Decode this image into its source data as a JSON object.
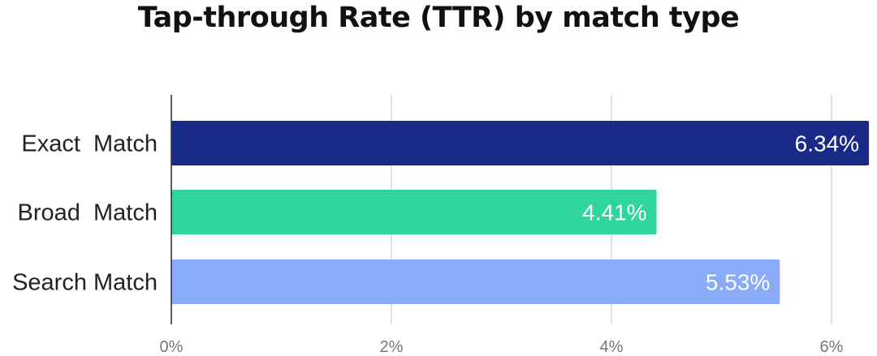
{
  "chart_data": {
    "type": "bar",
    "orientation": "horizontal",
    "title": "Tap-through Rate (TTR) by match type",
    "categories": [
      "Exact  Match",
      "Broad  Match",
      "Search Match"
    ],
    "values": [
      6.34,
      4.41,
      5.53
    ],
    "value_labels": [
      "6.34%",
      "4.41%",
      "5.53%"
    ],
    "colors": [
      "#1a2a87",
      "#2fd59b",
      "#8aabf7"
    ],
    "x_ticks": [
      0,
      2,
      4,
      6
    ],
    "x_tick_labels": [
      "0%",
      "2%",
      "4%",
      "6%"
    ],
    "xlim": [
      0,
      6.34
    ],
    "grid": true,
    "legend": "none"
  }
}
